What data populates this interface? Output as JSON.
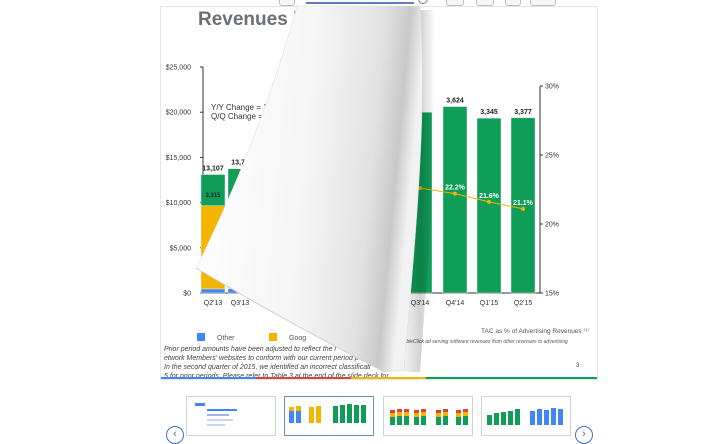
{
  "slide": {
    "title": "Revenues by R",
    "change_yy": "Y/Y Change = 11%",
    "change_qq": "Q/Q Change = 3%",
    "page_number": "3",
    "tac_note": "TAC as % of Advertising Revenues ⁽¹⁾",
    "small_note": "o DoubleClick ad serving software revenues from other revenues to advertising",
    "footnotes": [
      "Prior period amounts have been adjusted to reflect the r",
      "etwork Members' websites to conform with our current period p",
      "In the second quarter of 2015, we identified an incorrect classificati",
      "5  for prior periods. Please refer to Table 3 at the end of the slide deck for"
    ],
    "legend": [
      {
        "label": "Other",
        "color": "#4285f4"
      },
      {
        "label": "Goog",
        "color": "#f4b400"
      }
    ]
  },
  "chart_data": {
    "type": "bar",
    "categories": [
      "Q2'13",
      "Q3'13",
      "Q3'14",
      "Q4'14",
      "Q1'15",
      "Q2'15"
    ],
    "y_ticks": [
      "$0",
      "$5,000",
      "$10,000",
      "$15,000",
      "$20,000",
      "$25,000"
    ],
    "y_right_ticks": [
      "15%",
      "20%",
      "25%",
      "30%"
    ],
    "ylim": [
      0,
      25000
    ],
    "y_right_lim": [
      15,
      30
    ],
    "bar_totals": [
      13107,
      13754,
      null,
      20624,
      19345,
      19377
    ],
    "bar_labels": [
      "13,107",
      "13,75",
      "",
      "3,624",
      "3,345",
      "3,377"
    ],
    "segment_labels": [
      {
        "category": "Q2'13",
        "label": "3,315"
      }
    ],
    "series": [
      {
        "name": "Other",
        "color": "#4285f4",
        "values": [
          450,
          480,
          null,
          null,
          null,
          null
        ]
      },
      {
        "name": "Goog",
        "color": "#f4b400",
        "values": [
          9200,
          9500,
          null,
          null,
          null,
          null
        ]
      },
      {
        "name": "",
        "color": "#0f9d58",
        "values": [
          3457,
          3774,
          20000,
          20624,
          19345,
          19377
        ]
      }
    ],
    "tac_line": {
      "color": "#f4b400",
      "points": [
        {
          "category": "Q3'14",
          "value": 22.6,
          "label": ""
        },
        {
          "category": "Q4'14",
          "value": 22.2,
          "label": "22.2%"
        },
        {
          "category": "Q1'15",
          "value": 21.6,
          "label": "21.6%"
        },
        {
          "category": "Q2'15",
          "value": 21.1,
          "label": "21.1%"
        }
      ]
    }
  },
  "thumbnails": [
    {
      "name": "slide-2"
    },
    {
      "name": "slide-3"
    },
    {
      "name": "slide-4"
    },
    {
      "name": "slide-5"
    },
    {
      "name": "slide-6"
    }
  ],
  "nav": {
    "prev_icon": "chevron-left-icon",
    "next_icon": "chevron-right-icon",
    "prev": "‹",
    "next": "›"
  },
  "colors": {
    "green": "#0f9d58",
    "yellow": "#f4b400",
    "blue": "#4285f4",
    "red": "#db4437"
  }
}
